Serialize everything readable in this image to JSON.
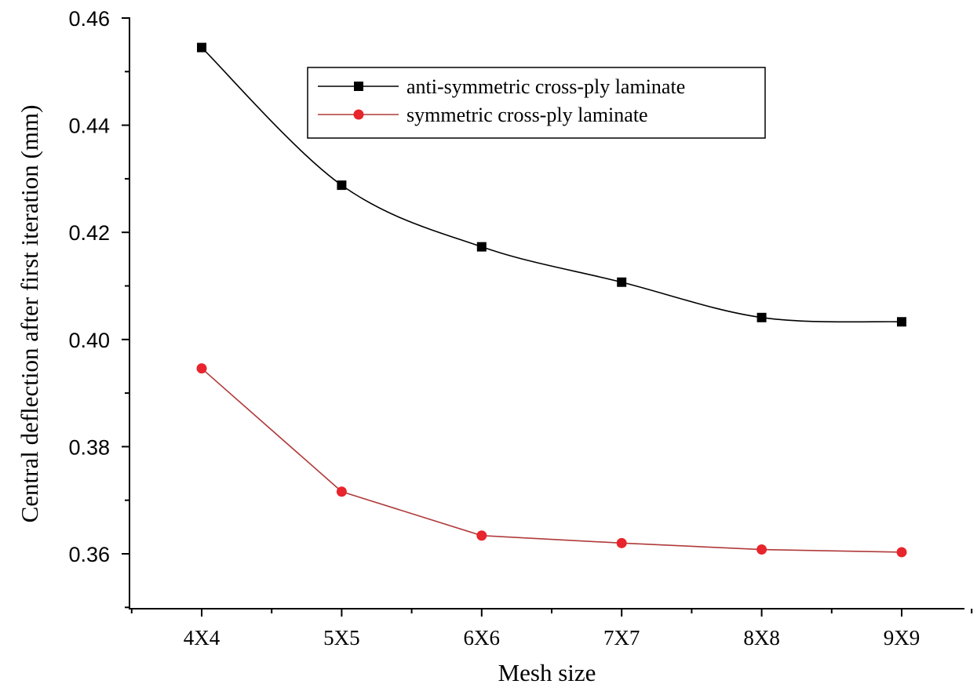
{
  "chart_data": {
    "type": "line",
    "xlabel": "Mesh size",
    "ylabel": "Central deflection after first iteration (mm)",
    "categories": [
      "4X4",
      "5X5",
      "6X6",
      "7X7",
      "8X8",
      "9X9"
    ],
    "ylim": [
      0.35,
      0.46
    ],
    "yticks": [
      "0.36",
      "0.38",
      "0.40",
      "0.42",
      "0.44",
      "0.46"
    ],
    "grid": false,
    "legend_position": "top-right",
    "series": [
      {
        "name": "anti-symmetric cross-ply laminate",
        "values": [
          0.4545,
          0.4288,
          0.4173,
          0.4107,
          0.4041,
          0.4033
        ],
        "color": "#000000",
        "marker": "square",
        "smooth": true
      },
      {
        "name": "symmetric cross-ply laminate",
        "values": [
          0.3946,
          0.3716,
          0.3634,
          0.362,
          0.3608,
          0.3603
        ],
        "color": "#e8242c",
        "line_color": "#b03a3a",
        "marker": "circle",
        "smooth": false
      }
    ]
  }
}
